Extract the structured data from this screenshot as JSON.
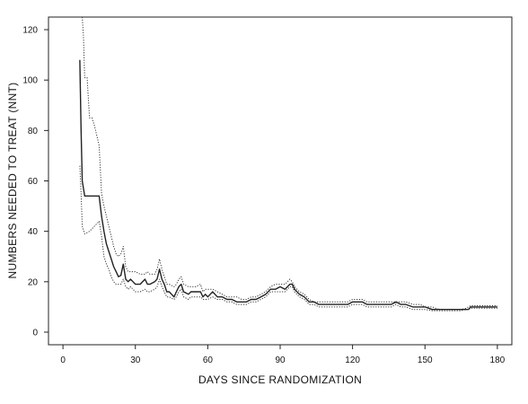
{
  "chart_data": {
    "type": "line",
    "title": "",
    "xlabel": "DAYS SINCE RANDOMIZATION",
    "ylabel": "NUMBERS NEEDED TO TREAT (NNT)",
    "xlim": [
      -6,
      186
    ],
    "ylim": [
      -5,
      125
    ],
    "xticks": [
      0,
      30,
      60,
      90,
      120,
      150,
      180
    ],
    "yticks": [
      0,
      20,
      40,
      60,
      80,
      100,
      120
    ],
    "grid": false,
    "legend": "none",
    "series": [
      {
        "style": "solid",
        "color": "#222222",
        "points": [
          [
            7,
            108
          ],
          [
            7.5,
            80
          ],
          [
            8,
            60
          ],
          [
            9,
            54
          ],
          [
            11,
            54
          ],
          [
            13,
            54
          ],
          [
            15,
            54
          ],
          [
            16,
            46
          ],
          [
            17,
            40
          ],
          [
            18,
            35
          ],
          [
            19,
            32
          ],
          [
            20,
            29
          ],
          [
            21,
            26
          ],
          [
            22,
            24
          ],
          [
            23,
            22
          ],
          [
            24,
            22.5
          ],
          [
            25,
            27
          ],
          [
            26,
            21
          ],
          [
            27,
            20
          ],
          [
            28,
            21
          ],
          [
            29,
            20
          ],
          [
            30,
            19
          ],
          [
            32,
            19
          ],
          [
            34,
            21
          ],
          [
            35,
            19
          ],
          [
            36,
            19
          ],
          [
            38,
            20
          ],
          [
            39,
            21
          ],
          [
            40,
            25
          ],
          [
            41,
            21
          ],
          [
            42,
            19
          ],
          [
            43,
            16
          ],
          [
            44,
            16
          ],
          [
            46,
            14
          ],
          [
            47,
            16
          ],
          [
            48,
            18
          ],
          [
            49,
            19
          ],
          [
            50,
            16
          ],
          [
            52,
            15
          ],
          [
            53,
            16
          ],
          [
            55,
            16
          ],
          [
            57,
            16
          ],
          [
            58,
            14
          ],
          [
            59,
            15
          ],
          [
            60,
            14
          ],
          [
            62,
            16
          ],
          [
            64,
            14
          ],
          [
            66,
            14
          ],
          [
            68,
            13
          ],
          [
            70,
            13
          ],
          [
            72,
            12
          ],
          [
            74,
            12
          ],
          [
            76,
            12
          ],
          [
            78,
            13
          ],
          [
            80,
            13
          ],
          [
            82,
            14
          ],
          [
            84,
            15
          ],
          [
            86,
            17
          ],
          [
            88,
            17
          ],
          [
            90,
            18
          ],
          [
            92,
            17
          ],
          [
            94,
            19
          ],
          [
            95,
            19
          ],
          [
            96,
            17
          ],
          [
            98,
            15
          ],
          [
            100,
            14
          ],
          [
            102,
            12
          ],
          [
            104,
            12
          ],
          [
            106,
            11
          ],
          [
            108,
            11
          ],
          [
            110,
            11
          ],
          [
            112,
            11
          ],
          [
            114,
            11
          ],
          [
            116,
            11
          ],
          [
            118,
            11
          ],
          [
            120,
            12
          ],
          [
            122,
            12
          ],
          [
            124,
            12
          ],
          [
            126,
            11
          ],
          [
            128,
            11
          ],
          [
            130,
            11
          ],
          [
            132,
            11
          ],
          [
            134,
            11
          ],
          [
            136,
            11
          ],
          [
            138,
            12
          ],
          [
            140,
            11
          ],
          [
            142,
            11
          ],
          [
            145,
            10
          ],
          [
            148,
            10
          ],
          [
            150,
            10
          ],
          [
            153,
            9
          ],
          [
            156,
            9
          ],
          [
            159,
            9
          ],
          [
            162,
            9
          ],
          [
            165,
            9
          ],
          [
            167,
            9
          ],
          [
            168,
            9
          ],
          [
            169,
            10
          ],
          [
            170,
            10
          ],
          [
            172,
            10
          ],
          [
            175,
            10
          ],
          [
            178,
            10
          ],
          [
            180,
            10
          ]
        ]
      },
      {
        "style": "dotted",
        "color": "#333333",
        "points": [
          [
            8,
            125
          ],
          [
            8.5,
            117
          ],
          [
            9,
            101
          ],
          [
            10,
            101
          ],
          [
            11,
            85
          ],
          [
            12,
            85
          ],
          [
            13,
            82
          ],
          [
            14,
            78
          ],
          [
            15,
            74
          ],
          [
            16,
            55
          ],
          [
            17,
            50
          ],
          [
            18,
            46
          ],
          [
            19,
            42
          ],
          [
            20,
            38
          ],
          [
            21,
            34
          ],
          [
            22,
            31
          ],
          [
            23,
            30
          ],
          [
            24,
            31
          ],
          [
            25,
            34
          ],
          [
            26,
            26
          ],
          [
            27,
            24
          ],
          [
            28,
            24
          ],
          [
            29,
            24
          ],
          [
            30,
            24
          ],
          [
            32,
            23
          ],
          [
            34,
            23
          ],
          [
            35,
            24
          ],
          [
            36,
            23
          ],
          [
            38,
            23
          ],
          [
            39,
            25
          ],
          [
            40,
            29
          ],
          [
            41,
            25
          ],
          [
            42,
            22
          ],
          [
            43,
            19
          ],
          [
            44,
            19
          ],
          [
            46,
            18
          ],
          [
            47,
            19
          ],
          [
            48,
            21
          ],
          [
            49,
            22
          ],
          [
            50,
            19
          ],
          [
            52,
            18
          ],
          [
            53,
            18
          ],
          [
            55,
            18
          ],
          [
            57,
            19
          ],
          [
            58,
            16
          ],
          [
            59,
            17
          ],
          [
            60,
            17
          ],
          [
            62,
            17
          ],
          [
            64,
            16
          ],
          [
            66,
            15
          ],
          [
            68,
            14
          ],
          [
            70,
            14
          ],
          [
            72,
            14
          ],
          [
            74,
            13
          ],
          [
            76,
            13
          ],
          [
            78,
            14
          ],
          [
            80,
            14
          ],
          [
            82,
            15
          ],
          [
            84,
            16
          ],
          [
            86,
            18
          ],
          [
            88,
            19
          ],
          [
            90,
            19
          ],
          [
            92,
            19
          ],
          [
            94,
            21
          ],
          [
            95,
            20
          ],
          [
            96,
            18
          ],
          [
            98,
            16
          ],
          [
            100,
            15
          ],
          [
            102,
            13
          ],
          [
            104,
            12
          ],
          [
            106,
            12
          ],
          [
            108,
            12
          ],
          [
            110,
            12
          ],
          [
            112,
            12
          ],
          [
            114,
            12
          ],
          [
            116,
            12
          ],
          [
            118,
            12
          ],
          [
            120,
            13
          ],
          [
            122,
            13
          ],
          [
            124,
            13
          ],
          [
            126,
            12
          ],
          [
            128,
            12
          ],
          [
            130,
            12
          ],
          [
            132,
            12
          ],
          [
            134,
            12
          ],
          [
            136,
            12
          ],
          [
            138,
            12
          ],
          [
            140,
            12
          ],
          [
            142,
            12
          ],
          [
            145,
            11
          ],
          [
            148,
            11
          ],
          [
            150,
            10
          ],
          [
            153,
            10
          ],
          [
            156,
            9
          ],
          [
            159,
            9
          ],
          [
            162,
            9
          ],
          [
            165,
            9
          ],
          [
            167,
            9.5
          ],
          [
            168,
            10
          ],
          [
            169,
            10.5
          ],
          [
            170,
            10.5
          ],
          [
            172,
            10.5
          ],
          [
            175,
            10.5
          ],
          [
            178,
            10.5
          ],
          [
            180,
            10.5
          ]
        ]
      },
      {
        "style": "dotted",
        "color": "#333333",
        "points": [
          [
            7,
            66
          ],
          [
            7.5,
            55
          ],
          [
            8,
            42
          ],
          [
            9,
            39
          ],
          [
            11,
            40
          ],
          [
            13,
            42
          ],
          [
            15,
            44
          ],
          [
            16,
            38
          ],
          [
            17,
            30
          ],
          [
            18,
            27
          ],
          [
            19,
            25
          ],
          [
            20,
            22
          ],
          [
            21,
            20
          ],
          [
            22,
            19
          ],
          [
            23,
            19
          ],
          [
            24,
            19
          ],
          [
            25,
            21
          ],
          [
            26,
            18
          ],
          [
            27,
            17
          ],
          [
            28,
            18
          ],
          [
            29,
            17
          ],
          [
            30,
            16
          ],
          [
            32,
            16
          ],
          [
            34,
            17
          ],
          [
            35,
            16
          ],
          [
            36,
            16
          ],
          [
            38,
            17
          ],
          [
            39,
            18
          ],
          [
            40,
            21
          ],
          [
            41,
            18
          ],
          [
            42,
            16
          ],
          [
            43,
            14
          ],
          [
            44,
            14
          ],
          [
            46,
            13
          ],
          [
            47,
            14
          ],
          [
            48,
            16
          ],
          [
            49,
            17
          ],
          [
            50,
            14
          ],
          [
            52,
            13
          ],
          [
            53,
            14
          ],
          [
            55,
            14
          ],
          [
            57,
            14
          ],
          [
            58,
            13
          ],
          [
            59,
            13
          ],
          [
            60,
            13
          ],
          [
            62,
            14
          ],
          [
            64,
            13
          ],
          [
            66,
            13
          ],
          [
            68,
            12
          ],
          [
            70,
            12
          ],
          [
            72,
            11
          ],
          [
            74,
            11
          ],
          [
            76,
            11
          ],
          [
            78,
            12
          ],
          [
            80,
            12
          ],
          [
            82,
            13
          ],
          [
            84,
            14
          ],
          [
            86,
            16
          ],
          [
            88,
            16
          ],
          [
            90,
            16
          ],
          [
            92,
            16
          ],
          [
            94,
            18
          ],
          [
            95,
            18
          ],
          [
            96,
            16
          ],
          [
            98,
            14
          ],
          [
            100,
            13
          ],
          [
            102,
            11
          ],
          [
            104,
            11
          ],
          [
            106,
            10
          ],
          [
            108,
            10
          ],
          [
            110,
            10
          ],
          [
            112,
            10
          ],
          [
            114,
            10
          ],
          [
            116,
            10
          ],
          [
            118,
            10
          ],
          [
            120,
            11
          ],
          [
            122,
            11
          ],
          [
            124,
            11
          ],
          [
            126,
            10
          ],
          [
            128,
            10
          ],
          [
            130,
            10
          ],
          [
            132,
            10
          ],
          [
            134,
            10
          ],
          [
            136,
            10
          ],
          [
            138,
            11
          ],
          [
            140,
            10
          ],
          [
            142,
            10
          ],
          [
            145,
            9
          ],
          [
            148,
            9
          ],
          [
            150,
            9
          ],
          [
            153,
            8.5
          ],
          [
            156,
            8.5
          ],
          [
            159,
            8.5
          ],
          [
            162,
            8.5
          ],
          [
            165,
            8.5
          ],
          [
            167,
            9
          ],
          [
            168,
            9
          ],
          [
            169,
            9.5
          ],
          [
            170,
            9.5
          ],
          [
            172,
            9.5
          ],
          [
            175,
            9.5
          ],
          [
            178,
            9.5
          ],
          [
            180,
            9.5
          ]
        ]
      }
    ]
  }
}
